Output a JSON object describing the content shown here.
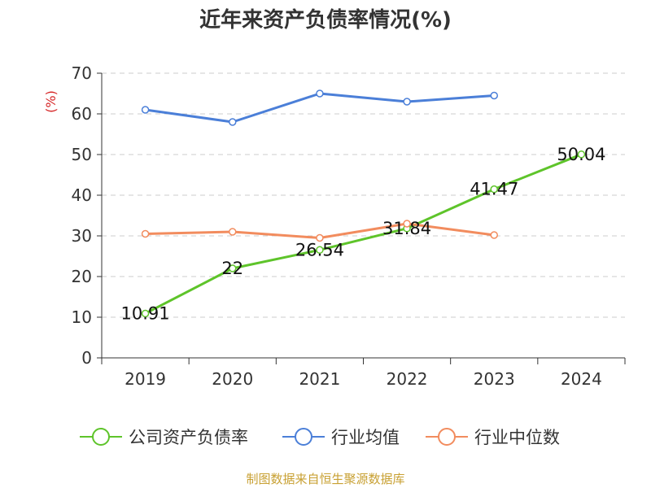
{
  "chart_data": {
    "type": "line",
    "title": "近年来资产负债率情况(%)",
    "xlabel": "",
    "ylabel": "(%)",
    "categories": [
      "2019",
      "2020",
      "2021",
      "2022",
      "2023",
      "2024"
    ],
    "ylim": [
      0,
      70
    ],
    "yticks": [
      0,
      10,
      20,
      30,
      40,
      50,
      60,
      70
    ],
    "grid": true,
    "legend_position": "bottom",
    "series": [
      {
        "name": "公司资产负债率",
        "color": "#5ec42a",
        "values": [
          10.91,
          22,
          26.54,
          31.84,
          41.47,
          50.04
        ],
        "labels": [
          "10.91",
          "22",
          "26.54",
          "31.84",
          "41.47",
          "50.04"
        ]
      },
      {
        "name": "行业均值",
        "color": "#4b7fd8",
        "values": [
          61,
          58,
          65,
          63,
          64.5,
          null
        ]
      },
      {
        "name": "行业中位数",
        "color": "#f28c5e",
        "values": [
          30.5,
          31,
          29.5,
          33,
          30.2,
          null
        ]
      }
    ]
  },
  "source_note": "制图数据来自恒生聚源数据库"
}
